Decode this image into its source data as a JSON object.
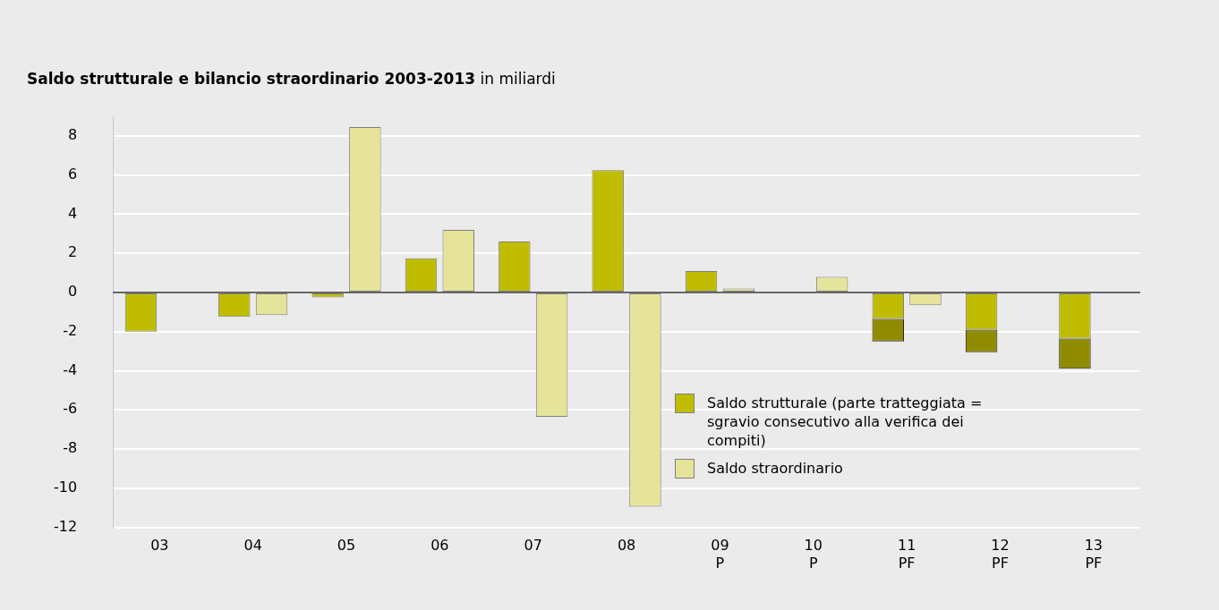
{
  "chart_data": {
    "type": "bar",
    "title": "Saldo strutturale e bilancio straordinario 2003-2013",
    "subtitle": "in miliardi",
    "categories": [
      "03",
      "04",
      "05",
      "06",
      "07",
      "08",
      "09\nP",
      "10\nP",
      "11\nPF",
      "12\nPF",
      "13\nPF"
    ],
    "series": [
      {
        "name": "Saldo strutturale (parte tratteggiata = sgravio consecutivo alla verifica dei compiti)",
        "color": "#c0bd00",
        "values": [
          -2.0,
          -1.25,
          -0.25,
          1.75,
          2.6,
          6.25,
          1.1,
          0,
          -1.35,
          -1.9,
          -2.35
        ]
      },
      {
        "color": "#8f8c00",
        "values": [
          null,
          null,
          null,
          null,
          null,
          null,
          null,
          null,
          -1.15,
          -1.15,
          -1.55
        ],
        "base": [
          null,
          null,
          null,
          null,
          null,
          null,
          null,
          null,
          -1.35,
          -1.9,
          -2.35
        ]
      },
      {
        "name": "Saldo straordinario",
        "color": "#e5e49a",
        "values": [
          0,
          -1.15,
          8.45,
          3.2,
          -6.35,
          -10.95,
          0.2,
          0.8,
          -0.65,
          0,
          0
        ]
      }
    ],
    "ylim": [
      -12,
      9
    ],
    "yticks": [
      -12,
      -10,
      -8,
      -6,
      -4,
      -2,
      0,
      2,
      4,
      6,
      8
    ],
    "grid": "y",
    "legend": "bottom right"
  }
}
